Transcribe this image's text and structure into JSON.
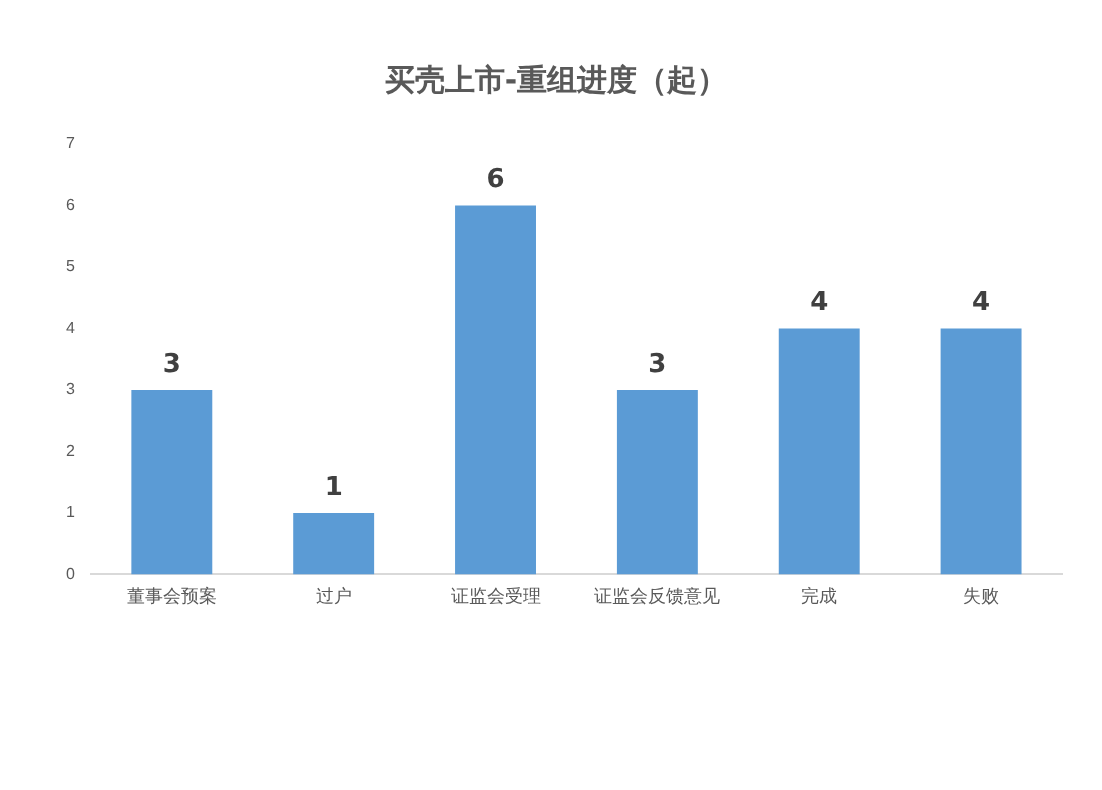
{
  "chart_data": {
    "type": "bar",
    "title": "买壳上市-重组进度（起）",
    "categories": [
      "董事会预案",
      "过户",
      "证监会受理",
      "证监会反馈意见",
      "完成",
      "失败"
    ],
    "values": [
      3,
      1,
      6,
      3,
      4,
      4
    ],
    "color": "#5b9bd5",
    "ylim": [
      0,
      7
    ],
    "yticks": [
      0,
      1,
      2,
      3,
      4,
      5,
      6,
      7
    ],
    "grid": false,
    "data_labels": true
  }
}
